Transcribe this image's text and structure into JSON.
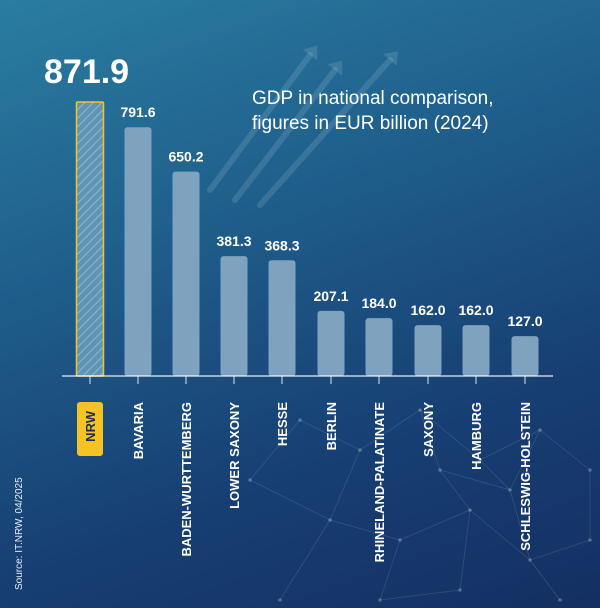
{
  "colors": {
    "bar": "#7fa3bf",
    "highlight": "#f5c324",
    "highlight_text": "#1a2f5a",
    "text": "#ffffff"
  },
  "subtitle_line1": "GDP in national comparison,",
  "subtitle_line2": "figures in EUR billion (2024)",
  "source": "Source: IT.NRW, 04/2025",
  "chart_data": {
    "type": "bar",
    "title": "GDP in national comparison, figures in EUR billion (2024)",
    "xlabel": "",
    "ylabel": "",
    "unit": "EUR billion",
    "ylim": [
      0,
      871.9
    ],
    "grid": false,
    "categories": [
      "NRW",
      "BAVARIA",
      "BADEN-WURTTEMBERG",
      "LOWER SAXONY",
      "HESSE",
      "BERLIN",
      "RHINELAND-PALATINATE",
      "SAXONY",
      "HAMBURG",
      "SCHLESWIG-HOLSTEIN"
    ],
    "values": [
      871.9,
      791.6,
      650.2,
      381.3,
      368.3,
      207.1,
      184.0,
      162.0,
      162.0,
      127.0
    ],
    "value_labels": [
      "871.9",
      "791.6",
      "650.2",
      "381.3",
      "368.3",
      "207.1",
      "184.0",
      "162.0",
      "162.0",
      "127.0"
    ],
    "highlighted": "NRW"
  }
}
